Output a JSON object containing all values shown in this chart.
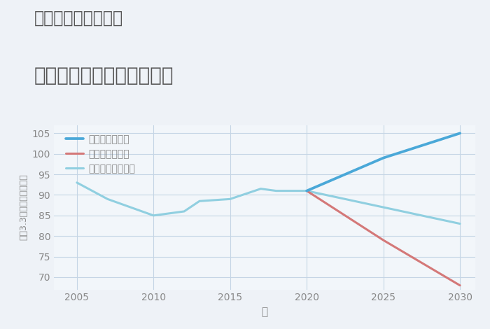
{
  "title_line1": "三重県伊賀市馬場の",
  "title_line2": "中古マンションの価格推移",
  "xlabel": "年",
  "ylabel": "坪（3.3㎡）単価（万円）",
  "background_color": "#eef2f7",
  "plot_background_color": "#f2f6fa",
  "good_scenario": {
    "label": "グッドシナリオ",
    "color": "#4aa8d8",
    "x": [
      2020,
      2025,
      2030
    ],
    "y": [
      91,
      99,
      105
    ]
  },
  "bad_scenario": {
    "label": "バッドシナリオ",
    "color": "#d47878",
    "x": [
      2020,
      2025,
      2030
    ],
    "y": [
      91,
      79,
      68
    ]
  },
  "normal_scenario": {
    "label": "ノーマルシナリオ",
    "color": "#90cfe0",
    "x": [
      2005,
      2007,
      2010,
      2011,
      2012,
      2013,
      2015,
      2017,
      2018,
      2020,
      2025,
      2030
    ],
    "y": [
      93,
      89,
      85,
      85.5,
      86,
      88.5,
      89,
      91.5,
      91,
      91,
      87,
      83
    ]
  },
  "ylim": [
    67,
    107
  ],
  "yticks": [
    70,
    75,
    80,
    85,
    90,
    95,
    100,
    105
  ],
  "xticks": [
    2005,
    2010,
    2015,
    2020,
    2025,
    2030
  ],
  "grid_color": "#c5d5e5",
  "title_color": "#555555",
  "axis_color": "#888888",
  "tick_color": "#888888",
  "legend_fontsize": 10,
  "title_fontsize1": 17,
  "title_fontsize2": 20,
  "linewidth": 2.2
}
